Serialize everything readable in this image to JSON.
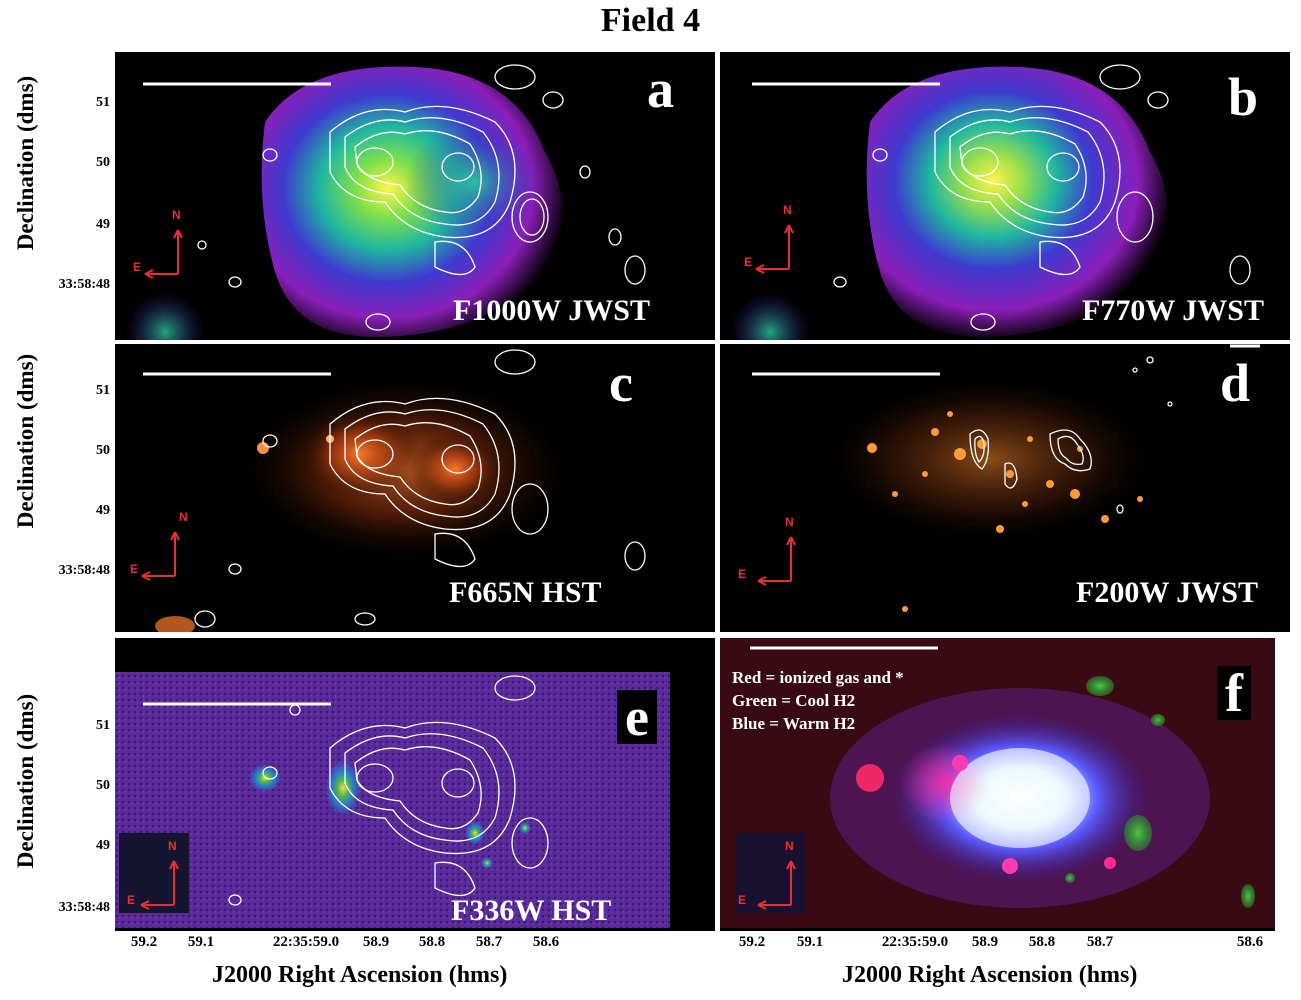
{
  "figure": {
    "title": "Field 4"
  },
  "panels": [
    {
      "letter": "a",
      "filter": "F1000W JWST"
    },
    {
      "letter": "b",
      "filter": "F770W JWST"
    },
    {
      "letter": "c",
      "filter": "F665N HST"
    },
    {
      "letter": "d",
      "filter": "F200W JWST"
    },
    {
      "letter": "e",
      "filter": "F336W HST"
    },
    {
      "letter": "f",
      "filter": ""
    }
  ],
  "composite_legend": {
    "red": "Red = ionized gas and *",
    "green": "Green = Cool H2",
    "blue": "Blue =  Warm H2"
  },
  "compass": {
    "north": "N",
    "east": "E"
  },
  "axes": {
    "ylabel": "Declination (dms)",
    "xlabel": "J2000 Right Ascension (hms)",
    "yticks": [
      "51",
      "50",
      "49",
      "33:58:48"
    ],
    "xticks": [
      "59.2",
      "59.1",
      "22:35:59.0",
      "58.9",
      "58.8",
      "58.7",
      "58.6"
    ]
  },
  "colors": {
    "contour": "#ffffff",
    "compass": "#e53131",
    "background": "#000000"
  }
}
